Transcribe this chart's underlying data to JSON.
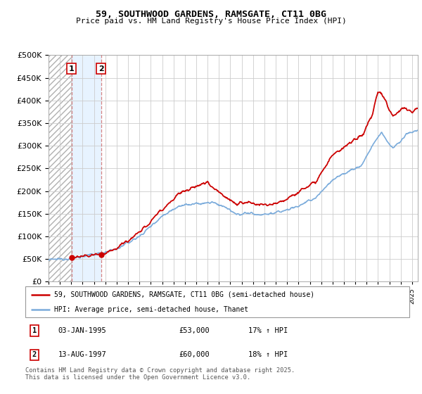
{
  "title1": "59, SOUTHWOOD GARDENS, RAMSGATE, CT11 0BG",
  "title2": "Price paid vs. HM Land Registry's House Price Index (HPI)",
  "legend_line1": "59, SOUTHWOOD GARDENS, RAMSGATE, CT11 0BG (semi-detached house)",
  "legend_line2": "HPI: Average price, semi-detached house, Thanet",
  "annotation1_date": "03-JAN-1995",
  "annotation1_price": "£53,000",
  "annotation1_hpi": "17% ↑ HPI",
  "annotation2_date": "13-AUG-1997",
  "annotation2_price": "£60,000",
  "annotation2_hpi": "18% ↑ HPI",
  "footer": "Contains HM Land Registry data © Crown copyright and database right 2025.\nThis data is licensed under the Open Government Licence v3.0.",
  "purchase1_year": 1995.03,
  "purchase1_price": 53000,
  "purchase2_year": 1997.62,
  "purchase2_price": 60000,
  "price_color": "#cc0000",
  "hpi_color": "#7aabdb",
  "ylim": [
    0,
    500000
  ],
  "yticks": [
    0,
    50000,
    100000,
    150000,
    200000,
    250000,
    300000,
    350000,
    400000,
    450000,
    500000
  ],
  "xlim_start": 1993.0,
  "xlim_end": 2025.5
}
